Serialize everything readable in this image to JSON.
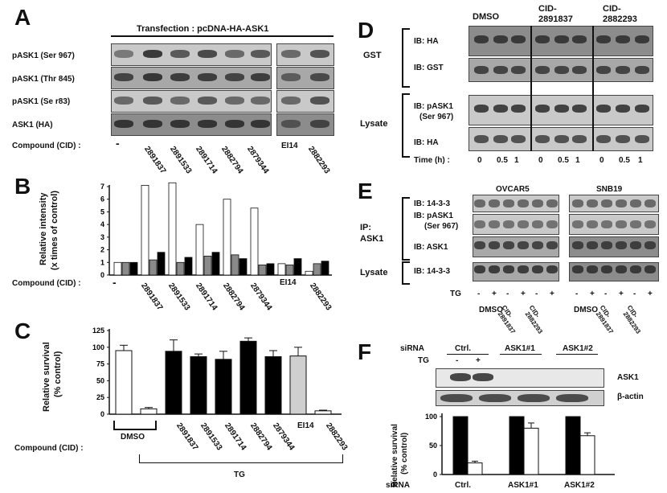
{
  "panelA": {
    "letter": "A",
    "header": "Transfection : pcDNA-HA-ASK1",
    "rows": [
      "pASK1 (Ser 967)",
      "pASK1 (Thr 845)",
      "pASK1 (Se r83)",
      "ASK1 (HA)"
    ],
    "compound_label": "Compound (CID) :",
    "lanes": [
      "-",
      "2891837",
      "2891533",
      "2891714",
      "2882794",
      "2879344",
      "EI14",
      "2882293"
    ]
  },
  "panelB": {
    "letter": "B",
    "ylabel_line1": "Relative intensity",
    "ylabel_line2": "(x times of control)",
    "compound_label": "Compound (CID) :",
    "ticks": [
      "0",
      "1",
      "2",
      "3",
      "4",
      "5",
      "6",
      "7"
    ],
    "lanes": [
      "-",
      "2891837",
      "2891533",
      "2891714",
      "2882794",
      "2879344",
      "EI14",
      "2882293"
    ]
  },
  "panelC": {
    "letter": "C",
    "ylabel_line1": "Relative survival",
    "ylabel_line2": "(% control)",
    "ticks": [
      "0",
      "25",
      "50",
      "75",
      "100",
      "125"
    ],
    "compound_label": "Compound (CID) :",
    "lanes": [
      "2891837",
      "2891533",
      "2891714",
      "2882794",
      "2879344",
      "EI14",
      "2882293"
    ],
    "dmso": "DMSO",
    "tg": "TG"
  },
  "panelD": {
    "letter": "D",
    "cols": [
      "DMSO",
      "CID-",
      "2891837",
      "CID-",
      "2882293"
    ],
    "gst": "GST",
    "lysate": "Lysate",
    "ib_ha": "IB: HA",
    "ib_gst": "IB: GST",
    "ib_pask1_l1": "IB: pASK1",
    "ib_pask1_l2": "(Ser 967)",
    "ib_ha2": "IB: HA",
    "time_label": "Time (h) :",
    "times": [
      "0",
      "0.5",
      "1",
      "0",
      "0.5",
      "1",
      "0",
      "0.5",
      "1"
    ]
  },
  "panelE": {
    "letter": "E",
    "ovcar": "OVCAR5",
    "snb": "SNB19",
    "ip_l1": "IP:",
    "ip_l2": "ASK1",
    "lysate": "Lysate",
    "ib1": "IB: 14-3-3",
    "ib2_l1": "IB: pASK1",
    "ib2_l2": "(Ser 967)",
    "ib3": "IB: ASK1",
    "ib4": "IB: 14-3-3",
    "tg": "TG",
    "signs": [
      "-",
      "+",
      "-",
      "+",
      "-",
      "+",
      "-",
      "+",
      "-",
      "+",
      "-",
      "+"
    ],
    "groups": [
      "DMSO",
      "CID-",
      "2891837",
      "CID-",
      "2882293",
      "DMSO",
      "CID-",
      "2891837",
      "CID-",
      "2882293"
    ]
  },
  "panelF": {
    "letter": "F",
    "sirna": "siRNA",
    "tg": "TG",
    "groups": [
      "Ctrl.",
      "ASK1#1",
      "ASK1#2"
    ],
    "signs": [
      "-",
      "+"
    ],
    "ask1": "ASK1",
    "bactin": "β-actin",
    "ylabel_line1": "Relative survival",
    "ylabel_line2": "(% control)",
    "ticks": [
      "0",
      "50",
      "100"
    ],
    "sirna_bottom": "siRNA"
  },
  "chart_data": [
    {
      "type": "bar",
      "title": "",
      "ylabel": "Relative intensity (x times of control)",
      "xlabel": "Compound (CID) :",
      "ylim": [
        0,
        7
      ],
      "categories": [
        "-",
        "2891837",
        "2891533",
        "2891714",
        "2882794",
        "2879344",
        "EI14",
        "2882293"
      ],
      "series": [
        {
          "values": [
            1.0,
            7.1,
            7.3,
            4.0,
            6.0,
            5.3,
            0.9,
            0.3
          ],
          "color": "#ffffff"
        },
        {
          "values": [
            1.0,
            1.2,
            1.0,
            1.5,
            1.6,
            0.8,
            0.8,
            0.9
          ],
          "color": "#8a8a8a"
        },
        {
          "values": [
            1.0,
            1.8,
            1.4,
            1.8,
            1.3,
            0.9,
            1.3,
            1.1
          ],
          "color": "#000000"
        }
      ]
    },
    {
      "type": "bar",
      "title": "",
      "ylabel": "Relative survival (% control)",
      "xlabel": "Compound (CID) :",
      "ylim": [
        0,
        125
      ],
      "categories": [
        "DMSO",
        "DMSO+TG",
        "2891837",
        "2891533",
        "2891714",
        "2882794",
        "2879344",
        "EI14",
        "2882293"
      ],
      "values": [
        95,
        8,
        94,
        86,
        82,
        109,
        86,
        87,
        5
      ],
      "errors": [
        8,
        2,
        17,
        4,
        12,
        5,
        9,
        13,
        1
      ],
      "colors": [
        "#ffffff",
        "#ffffff",
        "#000000",
        "#000000",
        "#000000",
        "#000000",
        "#000000",
        "#cfcfcf",
        "#ffffff"
      ]
    },
    {
      "type": "bar",
      "title": "",
      "ylabel": "Relative survival (% control)",
      "xlabel": "siRNA",
      "ylim": [
        0,
        100
      ],
      "categories": [
        "Ctrl.",
        "ASK1#1",
        "ASK1#2"
      ],
      "series": [
        {
          "values": [
            100,
            100,
            100
          ],
          "color": "#000000"
        },
        {
          "values": [
            20,
            80,
            67
          ],
          "errors": [
            3,
            9,
            5
          ],
          "color": "#ffffff"
        }
      ]
    }
  ]
}
